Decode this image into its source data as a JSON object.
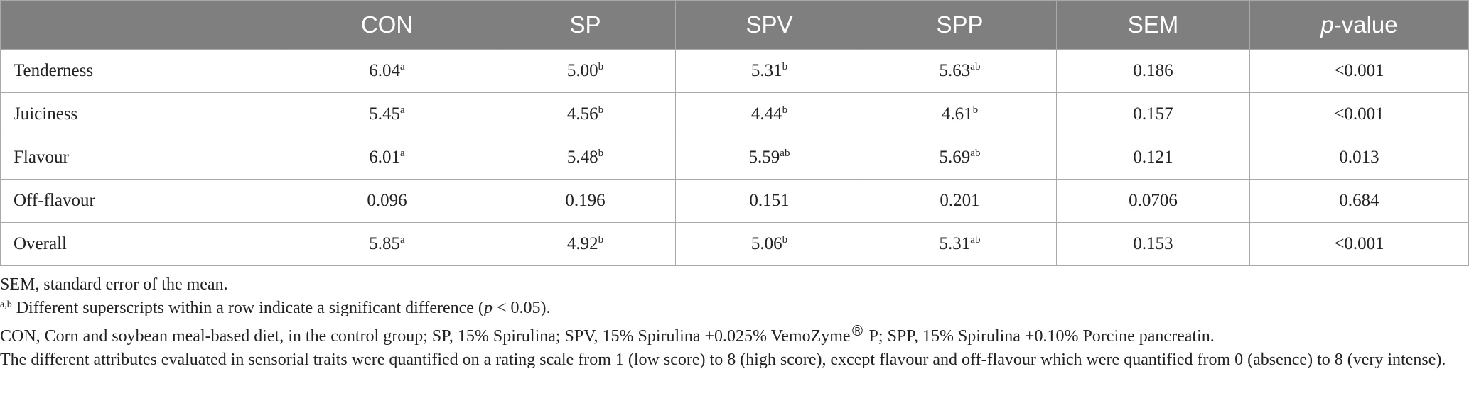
{
  "table": {
    "corner": "",
    "columns": [
      "CON",
      "SP",
      "SPV",
      "SPP",
      "SEM"
    ],
    "pvalue_label_italic": "p",
    "pvalue_label_rest": "-value",
    "rows": [
      {
        "label": "Tenderness",
        "cells": [
          {
            "v": "6.04",
            "s": "a"
          },
          {
            "v": "5.00",
            "s": "b"
          },
          {
            "v": "5.31",
            "s": "b"
          },
          {
            "v": "5.63",
            "s": "ab"
          },
          {
            "v": "0.186",
            "s": ""
          },
          {
            "v": "<0.001",
            "s": ""
          }
        ]
      },
      {
        "label": "Juiciness",
        "cells": [
          {
            "v": "5.45",
            "s": "a"
          },
          {
            "v": "4.56",
            "s": "b"
          },
          {
            "v": "4.44",
            "s": "b"
          },
          {
            "v": "4.61",
            "s": "b"
          },
          {
            "v": "0.157",
            "s": ""
          },
          {
            "v": "<0.001",
            "s": ""
          }
        ]
      },
      {
        "label": "Flavour",
        "cells": [
          {
            "v": "6.01",
            "s": "a"
          },
          {
            "v": "5.48",
            "s": "b"
          },
          {
            "v": "5.59",
            "s": "ab"
          },
          {
            "v": "5.69",
            "s": "ab"
          },
          {
            "v": "0.121",
            "s": ""
          },
          {
            "v": "0.013",
            "s": ""
          }
        ]
      },
      {
        "label": "Off-flavour",
        "cells": [
          {
            "v": "0.096",
            "s": ""
          },
          {
            "v": "0.196",
            "s": ""
          },
          {
            "v": "0.151",
            "s": ""
          },
          {
            "v": "0.201",
            "s": ""
          },
          {
            "v": "0.0706",
            "s": ""
          },
          {
            "v": "0.684",
            "s": ""
          }
        ]
      },
      {
        "label": "Overall",
        "cells": [
          {
            "v": "5.85",
            "s": "a"
          },
          {
            "v": "4.92",
            "s": "b"
          },
          {
            "v": "5.06",
            "s": "b"
          },
          {
            "v": "5.31",
            "s": "ab"
          },
          {
            "v": "0.153",
            "s": ""
          },
          {
            "v": "<0.001",
            "s": ""
          }
        ]
      }
    ]
  },
  "notes": {
    "sem": "SEM, standard error of the mean.",
    "sig_sup": "a,b",
    "sig_a": " Different superscripts within a row indicate a significant difference (",
    "sig_p": "p",
    "sig_b": " < 0.05).",
    "abbr_a": "CON, Corn and soybean meal-based diet, in the control group; SP, 15% Spirulina; SPV, 15% Spirulina +0.025% VemoZyme",
    "abbr_reg": "®",
    "abbr_b": " P; SPP, 15% Spirulina +0.10% Porcine pancreatin.",
    "scale": "The different attributes evaluated in sensorial traits were quantified on a rating scale from 1 (low score) to 8 (high score), except flavour and off-flavour which were quantified from 0 (absence) to 8 (very intense)."
  }
}
